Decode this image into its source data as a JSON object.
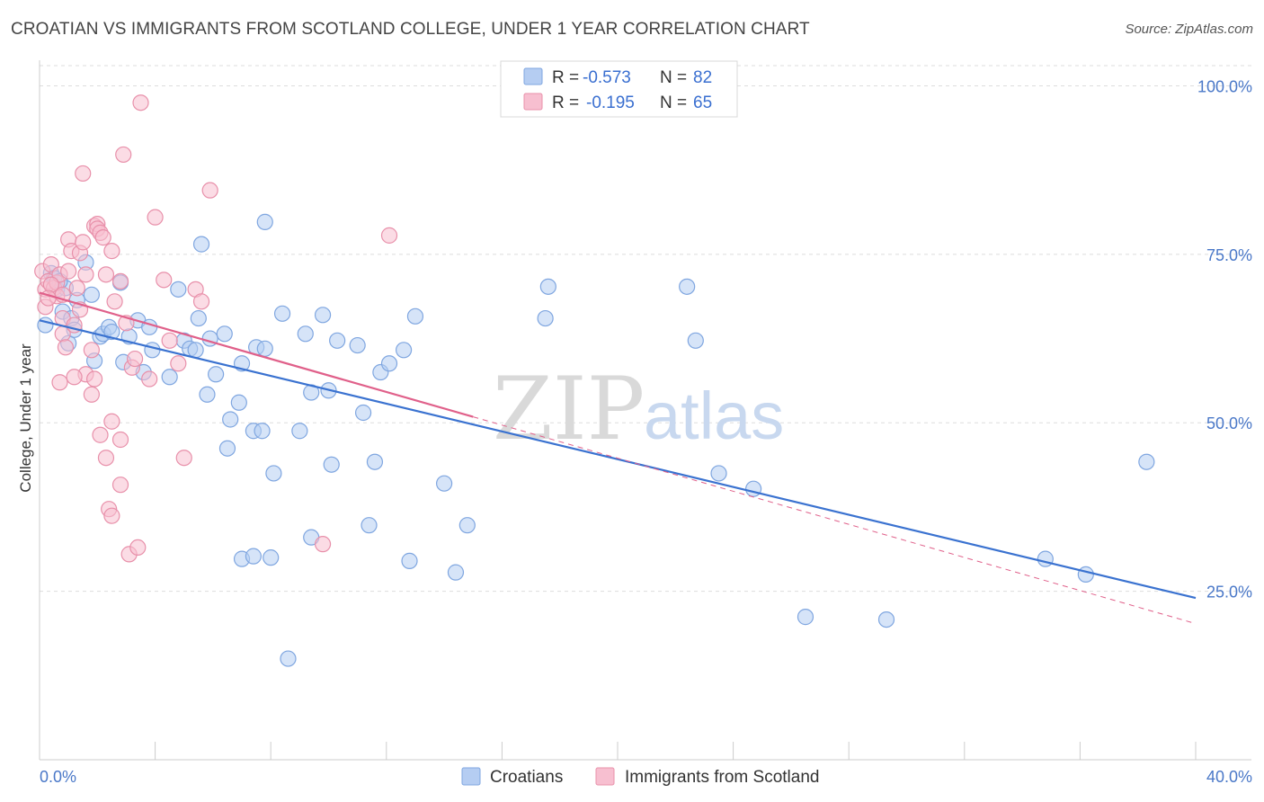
{
  "title": "CROATIAN VS IMMIGRANTS FROM SCOTLAND COLLEGE, UNDER 1 YEAR CORRELATION CHART",
  "source": "Source: ZipAtlas.com",
  "watermark": {
    "zip": "ZIP",
    "atlas": "atlas"
  },
  "colors": {
    "blue_fill": "#b5cdf2",
    "blue_stroke": "#7fa6e0",
    "blue_line": "#3a72d0",
    "pink_fill": "#f7bfd0",
    "pink_stroke": "#e890aa",
    "pink_line": "#e0608a",
    "grid": "#dddddd",
    "tick_text": "#4a78c8"
  },
  "legend": {
    "r_label": "R =",
    "n_label": "N =",
    "rows": [
      {
        "r": "-0.573",
        "n": "82",
        "color": "blue"
      },
      {
        "r": "-0.195",
        "n": "65",
        "color": "pink"
      }
    ]
  },
  "chart_data": {
    "type": "scatter",
    "title": "CROATIAN VS IMMIGRANTS FROM SCOTLAND COLLEGE, UNDER 1 YEAR CORRELATION CHART",
    "xlabel": "",
    "ylabel": "College, Under 1 year",
    "xlim": [
      0,
      40
    ],
    "ylim": [
      0,
      103
    ],
    "x_tick_labels": [
      "0.0%",
      "40.0%"
    ],
    "y_ticks": [
      25,
      50,
      75,
      100
    ],
    "y_tick_labels": [
      "25.0%",
      "50.0%",
      "75.0%",
      "100.0%"
    ],
    "grid": true,
    "series": [
      {
        "name": "Croatians",
        "color": "blue",
        "r": -0.573,
        "n": 82,
        "trend": {
          "x0": 0,
          "y0": 65.2,
          "x1": 40,
          "y1": 24.0,
          "dash_from": null
        },
        "points": [
          [
            0.2,
            64.5
          ],
          [
            0.4,
            72.2
          ],
          [
            0.5,
            71.5
          ],
          [
            0.6,
            69.8
          ],
          [
            0.8,
            66.5
          ],
          [
            0.9,
            70.0
          ],
          [
            1.0,
            61.8
          ],
          [
            1.1,
            65.5
          ],
          [
            1.2,
            63.8
          ],
          [
            1.3,
            68.2
          ],
          [
            1.6,
            73.8
          ],
          [
            1.8,
            69.0
          ],
          [
            1.9,
            59.2
          ],
          [
            2.1,
            62.8
          ],
          [
            2.2,
            63.2
          ],
          [
            2.4,
            64.2
          ],
          [
            2.5,
            63.5
          ],
          [
            2.8,
            70.8
          ],
          [
            2.9,
            59.0
          ],
          [
            3.1,
            62.8
          ],
          [
            3.4,
            65.2
          ],
          [
            3.6,
            57.5
          ],
          [
            3.8,
            64.2
          ],
          [
            3.9,
            60.8
          ],
          [
            4.5,
            56.8
          ],
          [
            4.8,
            69.8
          ],
          [
            5.0,
            62.2
          ],
          [
            5.2,
            61.0
          ],
          [
            5.4,
            60.8
          ],
          [
            5.5,
            65.5
          ],
          [
            5.6,
            76.5
          ],
          [
            5.8,
            54.2
          ],
          [
            5.9,
            62.5
          ],
          [
            6.1,
            57.2
          ],
          [
            6.4,
            63.2
          ],
          [
            6.5,
            46.2
          ],
          [
            6.6,
            50.5
          ],
          [
            6.9,
            53.0
          ],
          [
            7.0,
            58.8
          ],
          [
            7.4,
            48.8
          ],
          [
            7.5,
            61.2
          ],
          [
            7.7,
            48.8
          ],
          [
            7.8,
            61.0
          ],
          [
            7.8,
            79.8
          ],
          [
            8.1,
            42.5
          ],
          [
            8.4,
            66.2
          ],
          [
            9.0,
            48.8
          ],
          [
            9.2,
            63.2
          ],
          [
            9.4,
            54.5
          ],
          [
            9.8,
            66.0
          ],
          [
            10.0,
            54.8
          ],
          [
            10.1,
            43.8
          ],
          [
            10.3,
            62.2
          ],
          [
            11.0,
            61.5
          ],
          [
            11.4,
            34.8
          ],
          [
            11.6,
            44.2
          ],
          [
            11.8,
            57.5
          ],
          [
            12.1,
            58.8
          ],
          [
            12.6,
            60.8
          ],
          [
            12.8,
            29.5
          ],
          [
            13.0,
            65.8
          ],
          [
            14.0,
            41.0
          ],
          [
            14.8,
            34.8
          ],
          [
            14.4,
            27.8
          ],
          [
            17.5,
            65.5
          ],
          [
            17.6,
            70.2
          ],
          [
            22.4,
            70.2
          ],
          [
            22.7,
            62.2
          ],
          [
            23.5,
            42.5
          ],
          [
            24.7,
            40.2
          ],
          [
            26.5,
            21.2
          ],
          [
            29.3,
            20.8
          ],
          [
            34.8,
            29.8
          ],
          [
            36.2,
            27.5
          ],
          [
            38.3,
            44.2
          ],
          [
            8.0,
            30.0
          ],
          [
            7.0,
            29.8
          ],
          [
            7.4,
            30.2
          ],
          [
            9.4,
            33.0
          ],
          [
            8.6,
            15.0
          ],
          [
            11.2,
            51.5
          ],
          [
            0.7,
            71.0
          ]
        ]
      },
      {
        "name": "Immigrants from Scotland",
        "color": "pink",
        "r": -0.195,
        "n": 65,
        "trend": {
          "x0": 0,
          "y0": 69.3,
          "x1": 40,
          "y1": 20.2,
          "dash_from": 15.0
        },
        "points": [
          [
            0.1,
            72.5
          ],
          [
            0.2,
            69.8
          ],
          [
            0.2,
            67.2
          ],
          [
            0.3,
            71.0
          ],
          [
            0.4,
            73.5
          ],
          [
            0.5,
            70.0
          ],
          [
            0.6,
            68.8
          ],
          [
            0.6,
            70.8
          ],
          [
            0.7,
            72.0
          ],
          [
            0.8,
            65.5
          ],
          [
            0.8,
            63.2
          ],
          [
            0.9,
            61.2
          ],
          [
            1.0,
            72.5
          ],
          [
            1.0,
            77.2
          ],
          [
            1.1,
            75.5
          ],
          [
            1.2,
            64.5
          ],
          [
            1.3,
            70.0
          ],
          [
            1.4,
            66.8
          ],
          [
            1.4,
            75.2
          ],
          [
            1.5,
            87.0
          ],
          [
            1.5,
            76.8
          ],
          [
            1.6,
            72.0
          ],
          [
            1.8,
            60.8
          ],
          [
            1.9,
            79.2
          ],
          [
            2.0,
            79.5
          ],
          [
            2.0,
            78.8
          ],
          [
            2.1,
            78.2
          ],
          [
            2.2,
            77.5
          ],
          [
            2.3,
            72.0
          ],
          [
            2.5,
            75.5
          ],
          [
            2.6,
            68.0
          ],
          [
            2.8,
            71.0
          ],
          [
            2.9,
            89.8
          ],
          [
            3.0,
            64.8
          ],
          [
            3.2,
            58.2
          ],
          [
            3.3,
            59.5
          ],
          [
            3.5,
            97.5
          ],
          [
            3.8,
            56.5
          ],
          [
            4.0,
            80.5
          ],
          [
            4.3,
            71.2
          ],
          [
            4.5,
            62.2
          ],
          [
            4.8,
            58.8
          ],
          [
            5.0,
            44.8
          ],
          [
            5.4,
            69.8
          ],
          [
            5.6,
            68.0
          ],
          [
            5.9,
            84.5
          ],
          [
            1.8,
            54.2
          ],
          [
            2.1,
            48.2
          ],
          [
            2.3,
            44.8
          ],
          [
            2.5,
            50.2
          ],
          [
            2.8,
            47.5
          ],
          [
            2.8,
            40.8
          ],
          [
            3.1,
            30.5
          ],
          [
            3.4,
            31.5
          ],
          [
            2.4,
            37.2
          ],
          [
            2.5,
            36.2
          ],
          [
            9.8,
            32.0
          ],
          [
            12.1,
            77.8
          ],
          [
            1.6,
            57.2
          ],
          [
            1.2,
            56.8
          ],
          [
            0.7,
            56.0
          ],
          [
            1.9,
            56.5
          ],
          [
            0.8,
            69.0
          ],
          [
            0.4,
            70.5
          ],
          [
            0.3,
            68.5
          ]
        ]
      }
    ]
  },
  "bottom_legend": [
    {
      "label": "Croatians",
      "color": "blue"
    },
    {
      "label": "Immigrants from Scotland",
      "color": "pink"
    }
  ]
}
